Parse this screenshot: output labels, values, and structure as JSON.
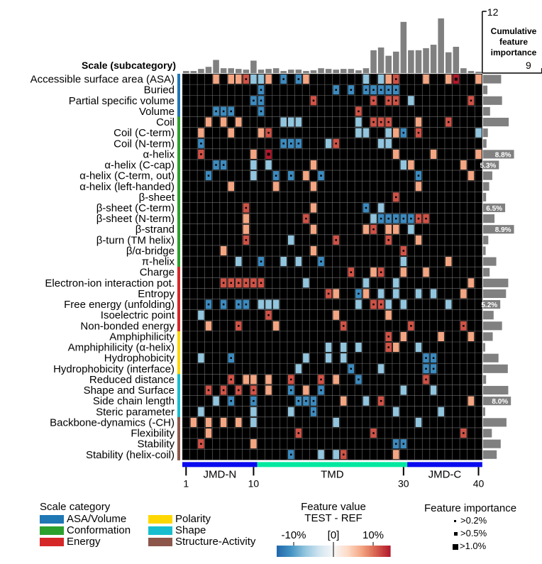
{
  "chart_data": {
    "type": "heatmap",
    "header": "Scale (subcategory)",
    "side_title": [
      "Cumulative",
      "feature",
      "importance"
    ],
    "cum_axis": {
      "max_label": "12",
      "min_label": "9"
    },
    "rows": [
      {
        "label": "Accessible surface area (ASA)",
        "cat": 0,
        "imp": 4.1
      },
      {
        "label": "Buried",
        "cat": 0,
        "imp": 1.0
      },
      {
        "label": "Partial specific volume",
        "cat": 0,
        "imp": 4.3
      },
      {
        "label": "Volume",
        "cat": 0,
        "imp": 1.6
      },
      {
        "label": "Coil",
        "cat": 1,
        "imp": 5.8
      },
      {
        "label": "Coil (C-term)",
        "cat": 1,
        "imp": 1.1
      },
      {
        "label": "Coil (N-term)",
        "cat": 1,
        "imp": 0.8
      },
      {
        "label": "α-helix",
        "cat": 1,
        "imp": 7.0,
        "bar_label": "8.8%"
      },
      {
        "label": "α-helix (C-cap)",
        "cat": 1,
        "imp": 3.6,
        "bar_label": "5.3%"
      },
      {
        "label": "α-helix (C-term, out)",
        "cat": 1,
        "imp": 2.1
      },
      {
        "label": "α-helix (left-handed)",
        "cat": 1,
        "imp": 1.4
      },
      {
        "label": "β-sheet",
        "cat": 1,
        "imp": 0.7
      },
      {
        "label": "β-sheet (C-term)",
        "cat": 1,
        "imp": 5.0,
        "bar_label": "6.5%"
      },
      {
        "label": "β-sheet (N-term)",
        "cat": 1,
        "imp": 2.6
      },
      {
        "label": "β-strand",
        "cat": 1,
        "imp": 7.0,
        "bar_label": "8.9%"
      },
      {
        "label": "β-turn (TM helix)",
        "cat": 1,
        "imp": 1.2
      },
      {
        "label": "β/α-bridge",
        "cat": 1,
        "imp": 0.6
      },
      {
        "label": "π-helix",
        "cat": 1,
        "imp": 3.0
      },
      {
        "label": "Charge",
        "cat": 2,
        "imp": 1.5
      },
      {
        "label": "Electron-ion interaction pot.",
        "cat": 2,
        "imp": 5.7
      },
      {
        "label": "Entropy",
        "cat": 2,
        "imp": 5.2
      },
      {
        "label": "Free energy (unfolding)",
        "cat": 2,
        "imp": 3.9,
        "bar_label": "5.2%"
      },
      {
        "label": "Isoelectric point",
        "cat": 2,
        "imp": 2.4
      },
      {
        "label": "Non-bonded energy",
        "cat": 2,
        "imp": 4.3
      },
      {
        "label": "Amphiphilicity",
        "cat": 3,
        "imp": 2.2
      },
      {
        "label": "Amphiphilicity (α-helix)",
        "cat": 3,
        "imp": 0.5
      },
      {
        "label": "Hydrophobicity",
        "cat": 3,
        "imp": 3.5
      },
      {
        "label": "Hydrophobicity (interface)",
        "cat": 3,
        "imp": 5.6
      },
      {
        "label": "Reduced distance",
        "cat": 4,
        "imp": 0.7
      },
      {
        "label": "Shape and Surface",
        "cat": 4,
        "imp": 5.7
      },
      {
        "label": "Side chain length",
        "cat": 4,
        "imp": 6.3,
        "bar_label": "8.0%"
      },
      {
        "label": "Steric parameter",
        "cat": 4,
        "imp": 0.5
      },
      {
        "label": "Backbone-dynamics (-CH)",
        "cat": 5,
        "imp": 5.3
      },
      {
        "label": "Flexibility",
        "cat": 5,
        "imp": 2.0
      },
      {
        "label": "Stability",
        "cat": 5,
        "imp": 4.0
      },
      {
        "label": "Stability (helix-coil)",
        "cat": 5,
        "imp": 3.1
      }
    ],
    "column_importance": [
      0.3,
      0.3,
      0.6,
      0.9,
      1.9,
      0.7,
      0.7,
      0.6,
      0.5,
      1.8,
      0.5,
      0.6,
      0.7,
      0.3,
      0.5,
      0.5,
      0.3,
      0.4,
      0.7,
      0.6,
      0.5,
      0.6,
      0.6,
      0.4,
      0.7,
      3.3,
      3.7,
      2.5,
      3.1,
      7.4,
      3.3,
      3.3,
      3.6,
      4.1,
      7.9,
      3.0,
      3.8,
      0.7,
      0.3,
      0.2
    ],
    "cells": [
      "....1.112111.2.21.......1.112...1..1a..1",
      "..........2.........2.2.22222...........",
      ".........22......2.......2.22.1.......2",
      "....222...2............2...............",
      "...1.1.1.....111.......1.222...1...2....",
      "..1...1...12...........11..112.2.......1",
      "..2..........222...12.....11...........",
      "..2......1.3................1....1.....1",
      "....22...1.1.....1...........11......1.",
      "...2.....1..2.2.1.2............2......1",
      "......1.....1....1.............1.......",
      "............................2..........",
      "........2........1......2.1...........",
      "........1.......2........12222222......",
      "........1........1......12.11.1........",
      "........2.....1.....2......2...1......",
      ".....1...........1...........2.........",
      ".......1..2..1.1..2..........1.....1...",
      "......................2..12..1..1......",
      ".....222222.....1.......1...1.........1",
      "...................21..21.1.1..1.1...1",
      "...2.2.22.111..........1.221.1.....1...",
      "..1........2........1......1..........",
      "...1...2....1........2........2......2.",
      "...........................2.1....1...1",
      "...................1.1.1...21..1.......",
      "..1...2.........1..1.1..........22.....",
      "...............1......2...1.....22.....",
      "......2.11.1..2...2.1..2........2......",
      "...2.2.2.2.1..2.1.2..........1...1.....",
      "....1.2..2.....222...1..1.2...........1",
      "..1......1....1..2..........1.....1....",
      ".1.1.1.1.1..........1..........1.......",
      "...1...........2.........2...........2.",
      "..2......1..................22.........",
      "..............2...1.12......1.........."
    ],
    "cell_values": [],
    "categories": [
      {
        "name": "ASA/Volume",
        "color": "#1f77b4"
      },
      {
        "name": "Conformation",
        "color": "#2ca02c"
      },
      {
        "name": "Energy",
        "color": "#d62728"
      },
      {
        "name": "Polarity",
        "color": "#ffd700"
      },
      {
        "name": "Shape",
        "color": "#17becf"
      },
      {
        "name": "Structure-Activity",
        "color": "#8c564b"
      }
    ],
    "x_ticks": [
      1,
      10,
      30,
      40
    ],
    "regions": [
      {
        "name": "JMD-N",
        "from": 1,
        "to": 10,
        "color": "#0a0aef"
      },
      {
        "name": "TMD",
        "from": 11,
        "to": 30,
        "color": "#00e8a0"
      },
      {
        "name": "JMD-C",
        "from": 31,
        "to": 40,
        "color": "#0a0aef"
      }
    ],
    "value_legend": {
      "title": "Feature value",
      "subtitle": "TEST - REF",
      "ticks": [
        "-10%",
        "[0]",
        "10%"
      ]
    },
    "importance_legend": {
      "title": "Feature importance",
      "items": [
        ">0.2%",
        ">0.5%",
        ">1.0%"
      ]
    }
  },
  "legend_title": "Scale category"
}
